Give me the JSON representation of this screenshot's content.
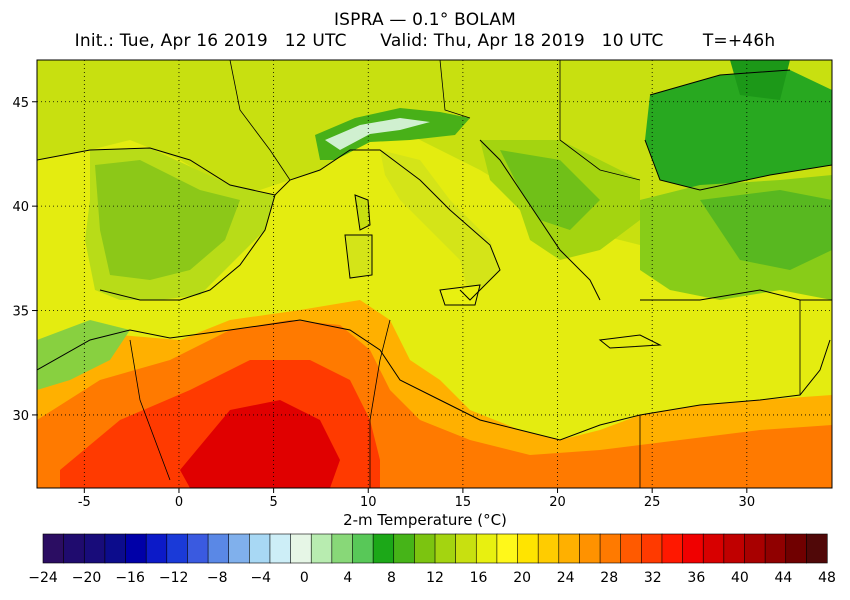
{
  "header": {
    "title": "ISPRA — 0.1° BOLAM",
    "subtitle": "Init.: Tue, Apr 16 2019   12 UTC      Valid: Thu, Apr 18 2019   10 UTC       T=+46h"
  },
  "map": {
    "lon_labels": [
      "-5",
      "0",
      "5",
      "10",
      "15",
      "20",
      "25",
      "30"
    ],
    "lat_labels": [
      "45",
      "40",
      "35",
      "30"
    ]
  },
  "colorbar": {
    "label": "2-m Temperature (°C)",
    "ticks": [
      "-24",
      "-20",
      "-16",
      "-12",
      "-8",
      "-4",
      "0",
      "4",
      "8",
      "12",
      "16",
      "20",
      "24",
      "28",
      "32",
      "36",
      "40",
      "44",
      "48"
    ],
    "colors": [
      "#2b0d62",
      "#1f0b6e",
      "#180c7a",
      "#0c0c8c",
      "#0000a8",
      "#0c1ac8",
      "#1a3ad8",
      "#3a5ae0",
      "#5a88e6",
      "#80b0ec",
      "#a8d8f4",
      "#cdeef7",
      "#e6f6e6",
      "#b8ecb0",
      "#88d878",
      "#58c858",
      "#1ca818",
      "#46b418",
      "#7cc410",
      "#a4d410",
      "#c8e010",
      "#e8f010",
      "#fff81a",
      "#ffe400",
      "#ffcc00",
      "#ffb000",
      "#ff9200",
      "#ff7a00",
      "#ff5a00",
      "#ff3a00",
      "#ff1800",
      "#f00000",
      "#d80000",
      "#c00000",
      "#a80000",
      "#900000",
      "#700000",
      "#500808"
    ]
  }
}
